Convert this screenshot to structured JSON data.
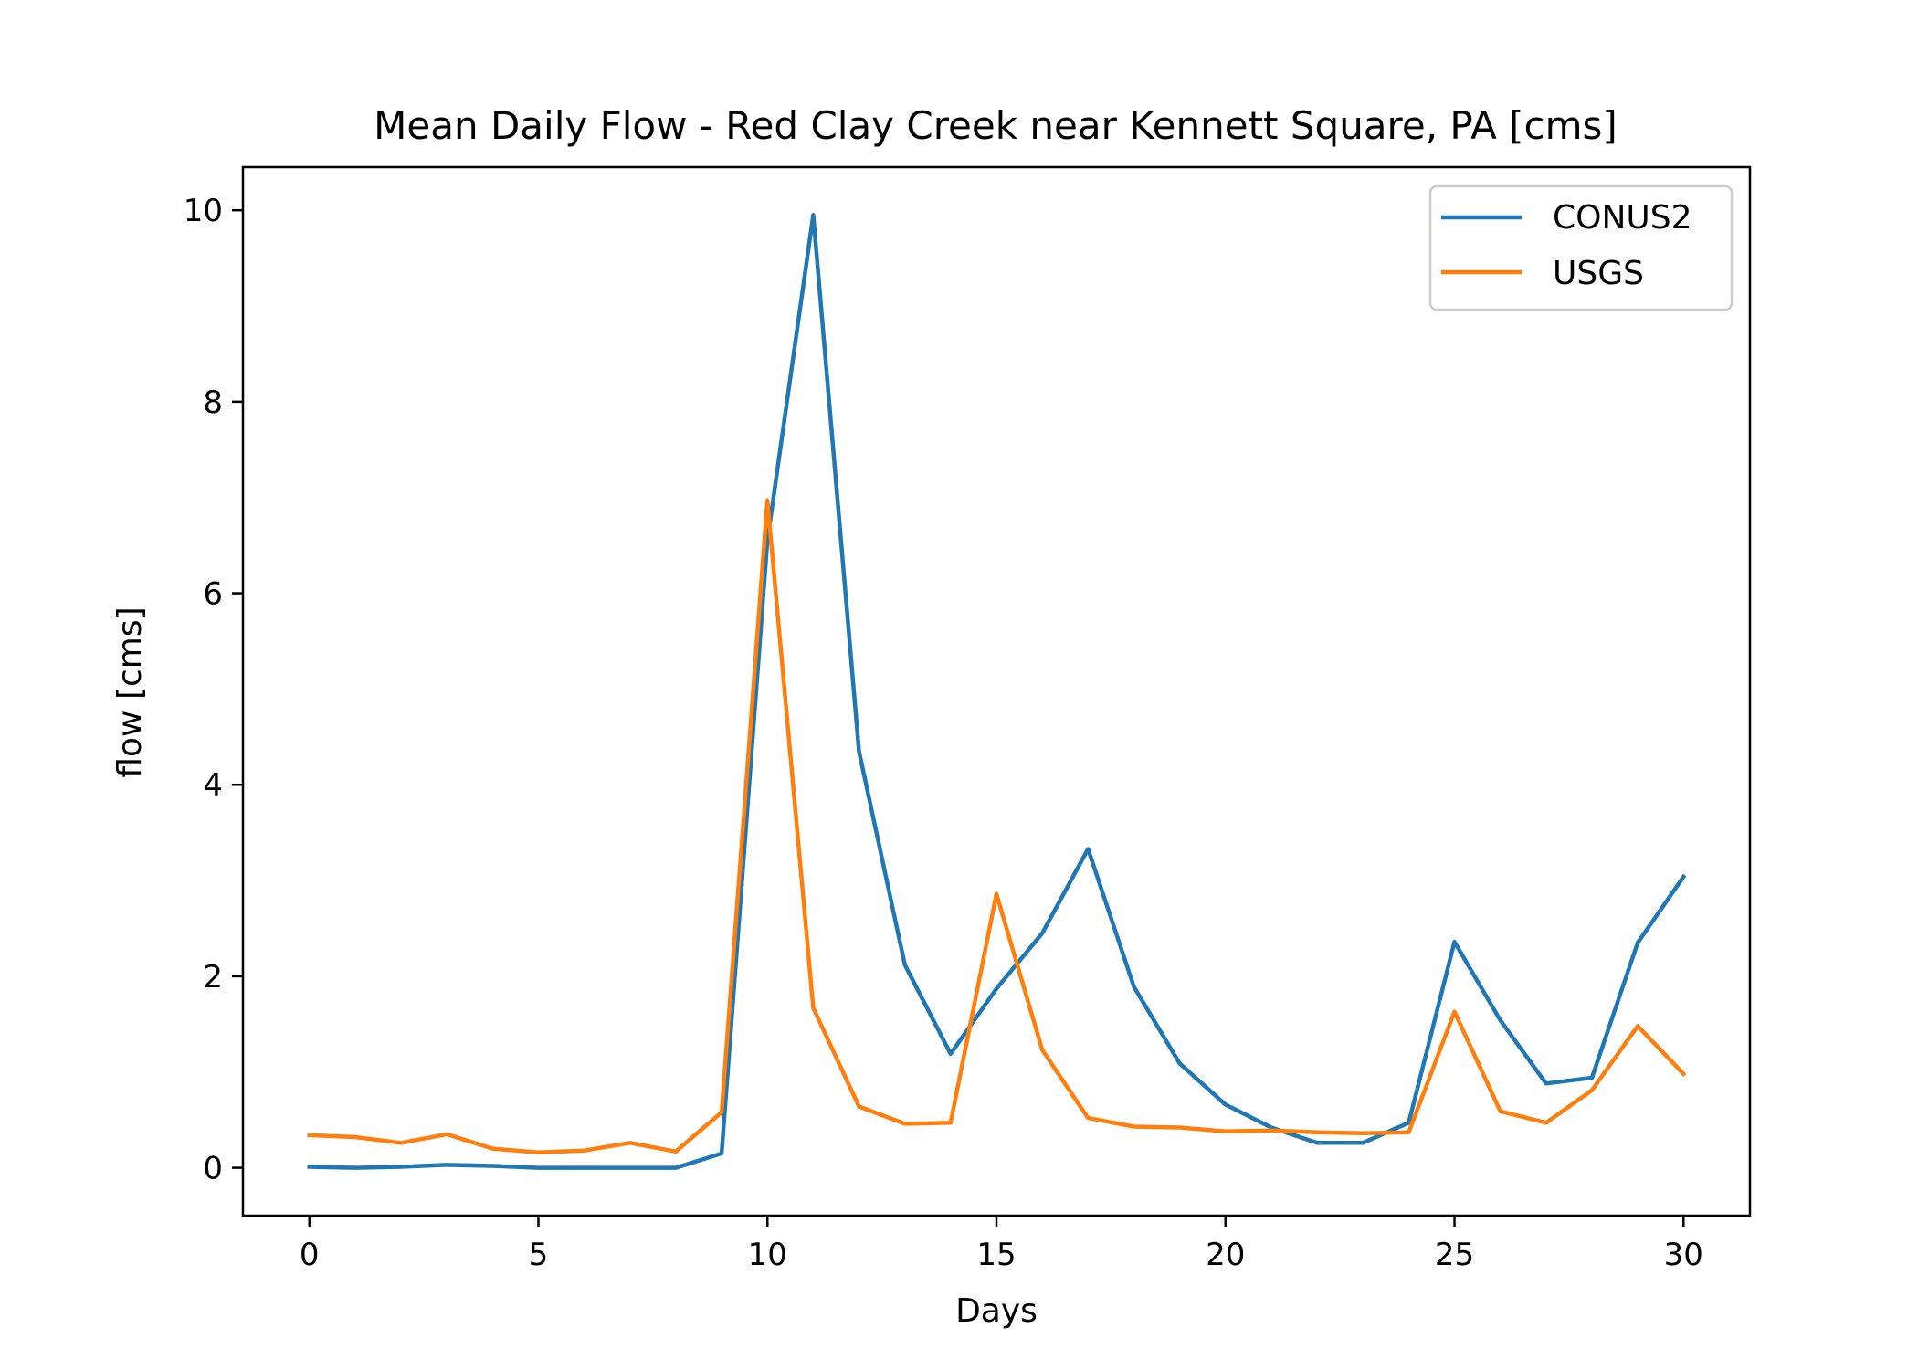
{
  "chart_data": {
    "type": "line",
    "title": "Mean Daily Flow - Red Clay Creek near Kennett Square, PA [cms]",
    "xlabel": "Days",
    "ylabel": "flow [cms]",
    "xlim": [
      -1.45,
      31.45
    ],
    "ylim": [
      -0.5,
      10.45
    ],
    "xticks": [
      0,
      5,
      10,
      15,
      20,
      25,
      30
    ],
    "yticks": [
      0,
      2,
      4,
      6,
      8,
      10
    ],
    "grid": false,
    "legend_position": "top-right",
    "x": [
      0,
      1,
      2,
      3,
      4,
      5,
      6,
      7,
      8,
      9,
      10,
      11,
      12,
      13,
      14,
      15,
      16,
      17,
      18,
      19,
      20,
      21,
      22,
      23,
      24,
      25,
      26,
      27,
      28,
      29,
      30
    ],
    "series": [
      {
        "name": "CONUS2",
        "color": "#1f77b4",
        "values": [
          0.01,
          0.0,
          0.01,
          0.03,
          0.02,
          0.0,
          0.0,
          0.0,
          0.0,
          0.15,
          6.55,
          9.95,
          4.35,
          2.12,
          1.19,
          1.87,
          2.45,
          3.33,
          1.89,
          1.09,
          0.66,
          0.42,
          0.26,
          0.26,
          0.47,
          2.36,
          1.54,
          0.88,
          0.94,
          2.35,
          3.04
        ]
      },
      {
        "name": "USGS",
        "color": "#ff7f0e",
        "values": [
          0.34,
          0.32,
          0.26,
          0.35,
          0.2,
          0.16,
          0.18,
          0.26,
          0.17,
          0.58,
          6.97,
          1.67,
          0.64,
          0.46,
          0.47,
          2.86,
          1.23,
          0.52,
          0.43,
          0.42,
          0.38,
          0.39,
          0.37,
          0.36,
          0.37,
          1.63,
          0.59,
          0.47,
          0.81,
          1.48,
          0.98
        ]
      }
    ]
  }
}
